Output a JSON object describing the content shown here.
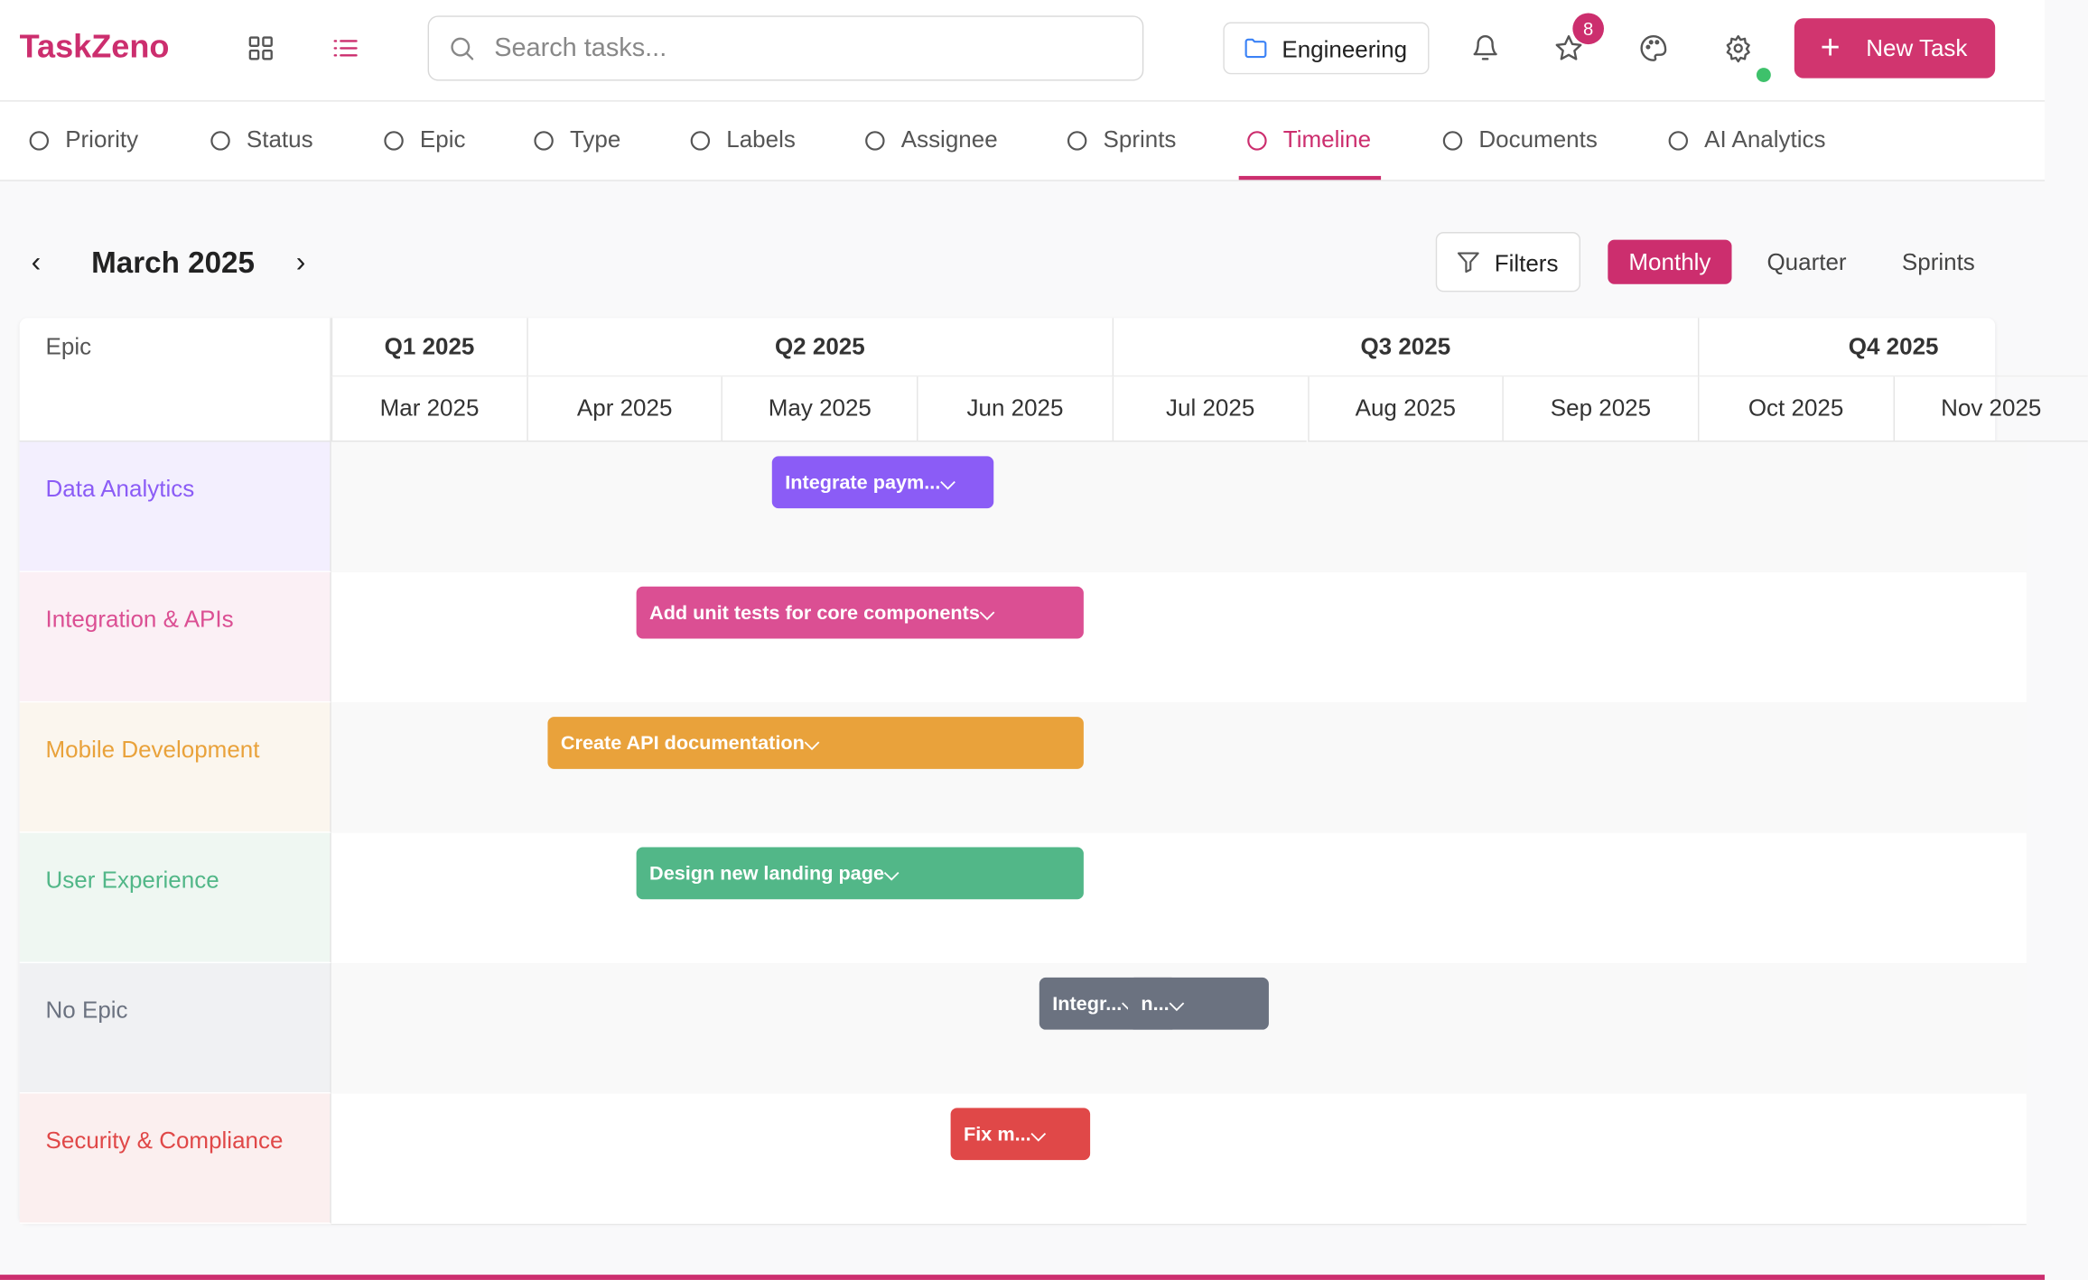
{
  "header": {
    "logo": "TaskZeno",
    "search_placeholder": "Search tasks...",
    "project": "Engineering",
    "notification_count": 8,
    "new_task": "New Task"
  },
  "tabs": [
    "Priority",
    "Status",
    "Epic",
    "Type",
    "Labels",
    "Assignee",
    "Sprints",
    "Timeline",
    "Documents",
    "AI Analytics"
  ],
  "timeline": {
    "period": "March 2025",
    "filters": "Filters",
    "views": [
      "Monthly",
      "Quarter",
      "Sprints"
    ],
    "epic_header": "Epic",
    "quarters": [
      "Q1 2025",
      "Q2 2025",
      "Q3 2025",
      "Q4 2025"
    ],
    "months": [
      "Mar 2025",
      "Apr 2025",
      "May 2025",
      "Jun 2025",
      "Jul 2025",
      "Aug 2025",
      "Sep 2025",
      "Oct 2025",
      "Nov 2025"
    ],
    "rows": [
      {
        "epic": "Data Analytics",
        "color": "#8b5cf6",
        "tint": "#f3effe",
        "tasks": [
          "Integrate paym..."
        ]
      },
      {
        "epic": "Integration & APIs",
        "color": "#db4f93",
        "tint": "#fbf0f5",
        "tasks": [
          "Add unit tests for core components"
        ]
      },
      {
        "epic": "Mobile Development",
        "color": "#e9a23b",
        "tint": "#fbf6ee",
        "tasks": [
          "Create API documentation"
        ]
      },
      {
        "epic": "User Experience",
        "color": "#52b788",
        "tint": "#eff7f2",
        "tasks": [
          "Design new landing page"
        ]
      },
      {
        "epic": "No Epic",
        "color": "#6b7280",
        "tint": "#f0f1f3",
        "tasks": [
          "Integr...",
          "n..."
        ]
      },
      {
        "epic": "Security & Compliance",
        "color": "#e04848",
        "tint": "#fbefef",
        "tasks": [
          "Fix m..."
        ]
      }
    ]
  }
}
